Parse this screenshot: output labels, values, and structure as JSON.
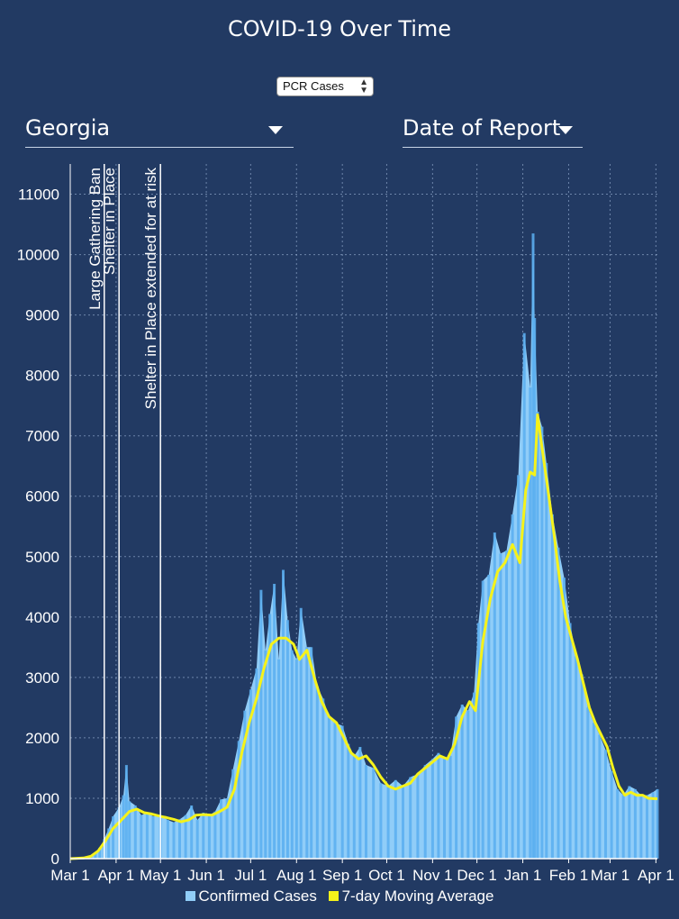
{
  "title": "COVID-19 Over Time",
  "metric_select": {
    "value": "PCR Cases"
  },
  "region_dropdown": {
    "value": "Georgia"
  },
  "date_dropdown": {
    "value": "Date of Report"
  },
  "colors": {
    "background": "#223a63",
    "bars": "#90cdf8",
    "moving_average": "#f5f21a",
    "grid": "#8ea6c9"
  },
  "chart_data": {
    "type": "bar",
    "x_type": "date",
    "ylim": [
      0,
      11500
    ],
    "y_ticks": [
      0,
      1000,
      2000,
      3000,
      4000,
      5000,
      6000,
      7000,
      8000,
      9000,
      10000,
      11000
    ],
    "x_ticks": [
      {
        "date": "2020-03-01",
        "label": "Mar 1"
      },
      {
        "date": "2020-04-01",
        "label": "Apr 1"
      },
      {
        "date": "2020-05-01",
        "label": "May 1"
      },
      {
        "date": "2020-06-01",
        "label": "Jun 1"
      },
      {
        "date": "2020-07-01",
        "label": "Jul 1"
      },
      {
        "date": "2020-08-01",
        "label": "Aug 1"
      },
      {
        "date": "2020-09-01",
        "label": "Sep 1"
      },
      {
        "date": "2020-10-01",
        "label": "Oct 1"
      },
      {
        "date": "2020-11-01",
        "label": "Nov 1"
      },
      {
        "date": "2020-12-01",
        "label": "Dec 1"
      },
      {
        "date": "2021-01-01",
        "label": "Jan 1"
      },
      {
        "date": "2021-02-01",
        "label": "Feb 1"
      },
      {
        "date": "2021-03-01",
        "label": "Mar 1"
      },
      {
        "date": "2021-04-01",
        "label": "Apr 1"
      }
    ],
    "x_range": [
      "2020-03-01",
      "2021-04-02"
    ],
    "annotations": [
      {
        "date": "2020-03-24",
        "label": "Large Gathering Ban"
      },
      {
        "date": "2020-04-03",
        "label": "Shelter in Place"
      },
      {
        "date": "2020-05-01",
        "label": "Shelter in Place extended for at risk"
      }
    ],
    "series": [
      {
        "name": "Confirmed Cases",
        "style": "bars",
        "points": [
          [
            "2020-03-01",
            0
          ],
          [
            "2020-03-10",
            15
          ],
          [
            "2020-03-15",
            40
          ],
          [
            "2020-03-18",
            90
          ],
          [
            "2020-03-21",
            180
          ],
          [
            "2020-03-24",
            320
          ],
          [
            "2020-03-27",
            500
          ],
          [
            "2020-03-30",
            700
          ],
          [
            "2020-04-03",
            850
          ],
          [
            "2020-04-06",
            1050
          ],
          [
            "2020-04-08",
            1550
          ],
          [
            "2020-04-10",
            950
          ],
          [
            "2020-04-14",
            880
          ],
          [
            "2020-04-18",
            720
          ],
          [
            "2020-04-22",
            760
          ],
          [
            "2020-04-26",
            700
          ],
          [
            "2020-05-01",
            710
          ],
          [
            "2020-05-06",
            640
          ],
          [
            "2020-05-10",
            600
          ],
          [
            "2020-05-14",
            650
          ],
          [
            "2020-05-18",
            720
          ],
          [
            "2020-05-22",
            880
          ],
          [
            "2020-05-26",
            640
          ],
          [
            "2020-05-30",
            760
          ],
          [
            "2020-06-03",
            720
          ],
          [
            "2020-06-07",
            780
          ],
          [
            "2020-06-11",
            980
          ],
          [
            "2020-06-15",
            1000
          ],
          [
            "2020-06-19",
            1480
          ],
          [
            "2020-06-23",
            1950
          ],
          [
            "2020-06-27",
            2450
          ],
          [
            "2020-07-01",
            2800
          ],
          [
            "2020-07-05",
            3150
          ],
          [
            "2020-07-08",
            4450
          ],
          [
            "2020-07-11",
            3450
          ],
          [
            "2020-07-14",
            4050
          ],
          [
            "2020-07-17",
            4550
          ],
          [
            "2020-07-20",
            3300
          ],
          [
            "2020-07-23",
            4780
          ],
          [
            "2020-07-26",
            3950
          ],
          [
            "2020-07-29",
            3450
          ],
          [
            "2020-08-01",
            3300
          ],
          [
            "2020-08-04",
            4150
          ],
          [
            "2020-08-08",
            3500
          ],
          [
            "2020-08-11",
            3500
          ],
          [
            "2020-08-15",
            2850
          ],
          [
            "2020-08-19",
            2650
          ],
          [
            "2020-08-23",
            2350
          ],
          [
            "2020-08-27",
            2250
          ],
          [
            "2020-09-01",
            2200
          ],
          [
            "2020-09-05",
            1900
          ],
          [
            "2020-09-09",
            1700
          ],
          [
            "2020-09-13",
            1850
          ],
          [
            "2020-09-17",
            1550
          ],
          [
            "2020-09-22",
            1500
          ],
          [
            "2020-09-27",
            1250
          ],
          [
            "2020-10-02",
            1200
          ],
          [
            "2020-10-07",
            1300
          ],
          [
            "2020-10-12",
            1200
          ],
          [
            "2020-10-17",
            1350
          ],
          [
            "2020-10-22",
            1400
          ],
          [
            "2020-10-27",
            1550
          ],
          [
            "2020-11-01",
            1650
          ],
          [
            "2020-11-05",
            1750
          ],
          [
            "2020-11-09",
            1650
          ],
          [
            "2020-11-13",
            1700
          ],
          [
            "2020-11-17",
            2350
          ],
          [
            "2020-11-21",
            2550
          ],
          [
            "2020-11-25",
            2450
          ],
          [
            "2020-11-29",
            2750
          ],
          [
            "2020-12-02",
            3900
          ],
          [
            "2020-12-05",
            4600
          ],
          [
            "2020-12-09",
            4700
          ],
          [
            "2020-12-13",
            5400
          ],
          [
            "2020-12-17",
            5050
          ],
          [
            "2020-12-21",
            5100
          ],
          [
            "2020-12-25",
            5700
          ],
          [
            "2020-12-29",
            6350
          ],
          [
            "2021-01-02",
            8700
          ],
          [
            "2021-01-06",
            7800
          ],
          [
            "2021-01-08",
            10350
          ],
          [
            "2021-01-09",
            8950
          ],
          [
            "2021-01-11",
            7400
          ],
          [
            "2021-01-14",
            7150
          ],
          [
            "2021-01-17",
            6550
          ],
          [
            "2021-01-21",
            5700
          ],
          [
            "2021-01-25",
            5150
          ],
          [
            "2021-01-29",
            4650
          ],
          [
            "2021-02-02",
            3900
          ],
          [
            "2021-02-06",
            3350
          ],
          [
            "2021-02-10",
            3050
          ],
          [
            "2021-02-14",
            2500
          ],
          [
            "2021-02-18",
            2250
          ],
          [
            "2021-02-22",
            2050
          ],
          [
            "2021-02-26",
            1800
          ],
          [
            "2021-03-02",
            1450
          ],
          [
            "2021-03-06",
            1150
          ],
          [
            "2021-03-10",
            1050
          ],
          [
            "2021-03-14",
            1200
          ],
          [
            "2021-03-18",
            1150
          ],
          [
            "2021-03-22",
            1050
          ],
          [
            "2021-03-26",
            1050
          ],
          [
            "2021-03-30",
            1100
          ],
          [
            "2021-04-02",
            1150
          ]
        ]
      },
      {
        "name": "7-day Moving Average",
        "style": "line",
        "points": [
          [
            "2020-03-01",
            0
          ],
          [
            "2020-03-10",
            10
          ],
          [
            "2020-03-15",
            40
          ],
          [
            "2020-03-20",
            130
          ],
          [
            "2020-03-25",
            300
          ],
          [
            "2020-03-30",
            500
          ],
          [
            "2020-04-05",
            650
          ],
          [
            "2020-04-10",
            780
          ],
          [
            "2020-04-15",
            820
          ],
          [
            "2020-04-20",
            760
          ],
          [
            "2020-04-25",
            740
          ],
          [
            "2020-05-01",
            700
          ],
          [
            "2020-05-05",
            680
          ],
          [
            "2020-05-10",
            650
          ],
          [
            "2020-05-15",
            610
          ],
          [
            "2020-05-20",
            640
          ],
          [
            "2020-05-25",
            720
          ],
          [
            "2020-05-30",
            730
          ],
          [
            "2020-06-05",
            720
          ],
          [
            "2020-06-10",
            780
          ],
          [
            "2020-06-15",
            850
          ],
          [
            "2020-06-20",
            1150
          ],
          [
            "2020-06-25",
            1750
          ],
          [
            "2020-06-30",
            2250
          ],
          [
            "2020-07-05",
            2650
          ],
          [
            "2020-07-10",
            3150
          ],
          [
            "2020-07-15",
            3550
          ],
          [
            "2020-07-20",
            3650
          ],
          [
            "2020-07-25",
            3650
          ],
          [
            "2020-07-30",
            3550
          ],
          [
            "2020-08-03",
            3300
          ],
          [
            "2020-08-08",
            3450
          ],
          [
            "2020-08-13",
            3000
          ],
          [
            "2020-08-18",
            2600
          ],
          [
            "2020-08-23",
            2350
          ],
          [
            "2020-08-28",
            2250
          ],
          [
            "2020-09-02",
            2000
          ],
          [
            "2020-09-07",
            1750
          ],
          [
            "2020-09-12",
            1650
          ],
          [
            "2020-09-17",
            1700
          ],
          [
            "2020-09-22",
            1550
          ],
          [
            "2020-09-27",
            1350
          ],
          [
            "2020-10-02",
            1200
          ],
          [
            "2020-10-07",
            1150
          ],
          [
            "2020-10-12",
            1200
          ],
          [
            "2020-10-17",
            1250
          ],
          [
            "2020-10-22",
            1400
          ],
          [
            "2020-10-27",
            1500
          ],
          [
            "2020-11-01",
            1600
          ],
          [
            "2020-11-06",
            1700
          ],
          [
            "2020-11-11",
            1650
          ],
          [
            "2020-11-16",
            1900
          ],
          [
            "2020-11-21",
            2350
          ],
          [
            "2020-11-26",
            2600
          ],
          [
            "2020-11-30",
            2450
          ],
          [
            "2020-12-05",
            3600
          ],
          [
            "2020-12-10",
            4300
          ],
          [
            "2020-12-15",
            4750
          ],
          [
            "2020-12-20",
            4900
          ],
          [
            "2020-12-25",
            5200
          ],
          [
            "2020-12-30",
            4900
          ],
          [
            "2021-01-03",
            6100
          ],
          [
            "2021-01-06",
            6400
          ],
          [
            "2021-01-09",
            6350
          ],
          [
            "2021-01-11",
            7350
          ],
          [
            "2021-01-14",
            6800
          ],
          [
            "2021-01-18",
            6100
          ],
          [
            "2021-01-22",
            5400
          ],
          [
            "2021-01-26",
            4600
          ],
          [
            "2021-01-30",
            4000
          ],
          [
            "2021-02-03",
            3650
          ],
          [
            "2021-02-07",
            3300
          ],
          [
            "2021-02-11",
            2900
          ],
          [
            "2021-02-15",
            2500
          ],
          [
            "2021-02-19",
            2250
          ],
          [
            "2021-02-23",
            2050
          ],
          [
            "2021-02-27",
            1850
          ],
          [
            "2021-03-03",
            1500
          ],
          [
            "2021-03-07",
            1200
          ],
          [
            "2021-03-11",
            1050
          ],
          [
            "2021-03-15",
            1100
          ],
          [
            "2021-03-19",
            1050
          ],
          [
            "2021-03-23",
            1050
          ],
          [
            "2021-03-27",
            1000
          ],
          [
            "2021-04-02",
            990
          ]
        ]
      }
    ],
    "legend": "bottom"
  }
}
